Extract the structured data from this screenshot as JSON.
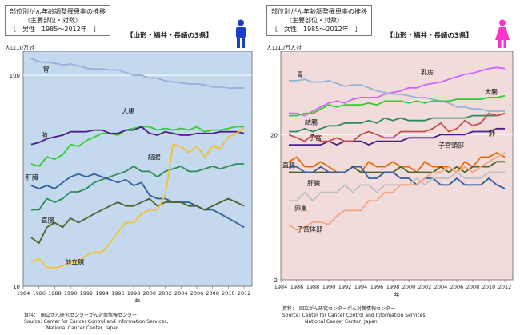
{
  "colors": {
    "male_bg": "#c5d9ee",
    "female_bg": "#f2dcdb",
    "male_icon": "#1a3ec8",
    "female_icon": "#ff33cc",
    "stomach_m": "#98b0dc",
    "colon": "#33cc33",
    "lung": "#4b1f8a",
    "liver": "#2f5f9e",
    "pancreas": "#2e8b57",
    "rectum": "#4f6228",
    "prostate": "#f2c12e",
    "breast": "#cc66ff",
    "stomach_f": "#95b3d7",
    "uterus": "#c0504d",
    "cervix": "#e46c0a",
    "ovary": "#bfbfbf",
    "corpus": "#f4a582"
  },
  "left": {
    "title_line1": "部位別がん年齢調整罹患率の推移",
    "title_line2": "（主要部位・対数）",
    "title_line3": "［　男性　1985～2012年　］",
    "region": "【山形・福井・長崎の3県】",
    "unit": "人口10万対",
    "xlabel": "年",
    "source_line1": "資料：　国立がん研究センターがん対策情報センター",
    "source_line2": "Source: Center for Cancer Control and Information Services,",
    "source_line3": "National Cancer Center, Japan"
  },
  "right": {
    "title_line1": "部位別がん年齢調整罹患率の推移",
    "title_line2": "（主要部位・対数）",
    "title_line3": "［　女性　1985～2012年　］",
    "region": "【山形・福井・長崎の3県】",
    "unit": "人口10万人対",
    "xlabel": "年",
    "source_line1": "資料：　国立がん研究センターがん対策情報センター",
    "source_line2": "Source: Center for Cancer Control and Information Services,",
    "source_line3": "National Cancer Center, Japan"
  },
  "chart_data": [
    {
      "type": "line",
      "title": "部位別がん年齢調整罹患率の推移（主要部位・対数）［男性 1985～2012年］",
      "xlabel": "年",
      "ylabel": "人口10万対",
      "yscale": "log",
      "ylim": [
        10,
        130
      ],
      "xlim": [
        1984,
        2013
      ],
      "yticks": [
        10,
        100
      ],
      "xticks": [
        1984,
        1986,
        1988,
        1990,
        1992,
        1994,
        1996,
        1998,
        2000,
        2002,
        2004,
        2006,
        2008,
        2010,
        2012
      ],
      "grid": "horizontal at 100",
      "x": [
        1985,
        1986,
        1987,
        1988,
        1989,
        1990,
        1991,
        1992,
        1993,
        1994,
        1995,
        1996,
        1997,
        1998,
        1999,
        2000,
        2001,
        2002,
        2003,
        2004,
        2005,
        2006,
        2007,
        2008,
        2009,
        2010,
        2011,
        2012
      ],
      "series": [
        {
          "name": "胃",
          "color_key": "stomach_m",
          "label_x": 1986.5,
          "label_y": 104,
          "values": [
            120,
            116,
            115,
            114,
            112,
            113,
            111,
            108,
            107,
            107,
            106,
            106,
            103,
            100,
            100,
            97,
            97,
            94,
            93,
            92,
            91,
            91,
            90,
            88,
            88,
            87,
            87,
            87
          ]
        },
        {
          "name": "大腸",
          "color_key": "colon",
          "label_x": 1996.5,
          "label_y": 66,
          "values": [
            38,
            37,
            41,
            40,
            42,
            47,
            46,
            49,
            51,
            53,
            53,
            52,
            55,
            56,
            57,
            57,
            55,
            56,
            55,
            56,
            55,
            57,
            54,
            55,
            55,
            56,
            57,
            57
          ]
        },
        {
          "name": "肺",
          "color_key": "lung",
          "label_x": 1986.3,
          "label_y": 51,
          "values": [
            47,
            48,
            50,
            51,
            52,
            54,
            54,
            54,
            55,
            55,
            53,
            53,
            55,
            55,
            57,
            53,
            52,
            54,
            53,
            52,
            52,
            53,
            53,
            53,
            54,
            54,
            54,
            53
          ]
        },
        {
          "name": "結腸",
          "color_key": "pancreas",
          "label_x": 1999.8,
          "label_y": 40,
          "values": [
            23,
            23,
            26,
            25,
            26,
            28,
            28,
            29,
            31,
            32,
            33,
            34,
            35,
            37,
            35,
            35,
            33,
            35,
            36,
            37,
            35,
            35,
            36,
            37,
            36,
            37,
            38,
            38
          ]
        },
        {
          "name": "肝臓",
          "color_key": "liver",
          "label_x": 1984.3,
          "label_y": 32,
          "values": [
            30,
            29,
            30,
            29,
            31,
            33,
            34,
            33,
            34,
            33,
            32,
            31,
            32,
            30,
            31,
            27,
            26,
            26,
            25,
            25,
            25,
            24,
            23,
            23,
            22,
            21,
            20,
            19
          ]
        },
        {
          "name": "直腸",
          "color_key": "rectum",
          "label_x": 1986.3,
          "label_y": 20,
          "values": [
            17,
            16,
            19,
            20,
            19,
            21,
            20,
            21,
            22,
            23,
            24,
            25,
            24,
            24,
            25,
            26,
            24,
            25,
            25,
            25,
            24,
            24,
            23,
            24,
            25,
            26,
            25,
            24
          ]
        },
        {
          "name": "前立腺",
          "color_key": "prostate",
          "label_x": 1989.3,
          "label_y": 12.7,
          "values": [
            13,
            13.5,
            12.3,
            12.2,
            12.5,
            13,
            13,
            14,
            14.5,
            14.5,
            16,
            18,
            20,
            20,
            22,
            23,
            23,
            27,
            47,
            46,
            43,
            46,
            41,
            46,
            45,
            51,
            53,
            56
          ]
        }
      ]
    },
    {
      "type": "line",
      "title": "部位別がん年齢調整罹患率の推移（主要部位・対数）［女性 1985～2012年］",
      "xlabel": "年",
      "ylabel": "人口10万人対",
      "yscale": "log",
      "ylim": [
        2,
        75
      ],
      "xlim": [
        1984,
        2013
      ],
      "yticks": [
        2,
        20
      ],
      "xticks": [
        1984,
        1986,
        1988,
        1990,
        1992,
        1994,
        1996,
        1998,
        2000,
        2002,
        2004,
        2006,
        2008,
        2010,
        2012
      ],
      "grid": "horizontal at 20",
      "x": [
        1985,
        1986,
        1987,
        1988,
        1989,
        1990,
        1991,
        1992,
        1993,
        1994,
        1995,
        1996,
        1997,
        1998,
        1999,
        2000,
        2001,
        2002,
        2003,
        2004,
        2005,
        2006,
        2007,
        2008,
        2009,
        2010,
        2011,
        2012
      ],
      "series": [
        {
          "name": "乳房",
          "color_key": "breast",
          "label_x": 2001.5,
          "label_y": 52,
          "values": [
            28,
            28,
            27,
            29,
            31,
            33,
            34,
            33,
            35,
            36,
            36,
            36,
            38,
            39,
            40,
            42,
            42,
            44,
            45,
            46,
            48,
            50,
            52,
            53,
            55,
            57,
            58,
            57
          ]
        },
        {
          "name": "胃",
          "color_key": "stomach_f",
          "label_x": 1986,
          "label_y": 50,
          "values": [
            47,
            47,
            48,
            46,
            46,
            47,
            45,
            43,
            44,
            44,
            42,
            40,
            39,
            38,
            38,
            37,
            36,
            36,
            35,
            34,
            33,
            31,
            31,
            30,
            30,
            29,
            29,
            29
          ]
        },
        {
          "name": "大腸",
          "color_key": "colon",
          "label_x": 2009.5,
          "label_y": 38,
          "values": [
            27,
            27,
            28,
            28,
            30,
            32,
            31,
            32,
            32,
            32,
            33,
            32,
            34,
            34,
            34,
            33,
            34,
            33,
            34,
            34,
            34,
            35,
            35,
            35,
            35,
            36,
            36,
            37
          ]
        },
        {
          "name": "結腸",
          "color_key": "pancreas",
          "label_x": 1987,
          "label_y": 23.5,
          "values": [
            21,
            21,
            22,
            21,
            22,
            23,
            23,
            24,
            24,
            24,
            25,
            24,
            26,
            25,
            26,
            25,
            25,
            25,
            26,
            26,
            26,
            26,
            26,
            27,
            27,
            27,
            27,
            28
          ]
        },
        {
          "name": "肺",
          "color_key": "lung",
          "label_x": 2010,
          "label_y": 19.7,
          "values": [
            17,
            17,
            17,
            17,
            17,
            18,
            17,
            18,
            18,
            18,
            17,
            18,
            18,
            18,
            18,
            19,
            19,
            19,
            19,
            20,
            20,
            20,
            20,
            21,
            21,
            21,
            22,
            22
          ]
        },
        {
          "name": "子宮",
          "color_key": "uterus",
          "label_x": 1987.5,
          "label_y": 18.4,
          "values": [
            20,
            19,
            18,
            20,
            18,
            18,
            19,
            18,
            18,
            20,
            21,
            20,
            19,
            19,
            21,
            21,
            21,
            21,
            22,
            24,
            21,
            22,
            25,
            23,
            24,
            28,
            27,
            28
          ]
        },
        {
          "name": "子宮頸部",
          "color_key": "cervix",
          "label_x": 2003.7,
          "label_y": 16.3,
          "values": [
            13,
            14,
            12,
            12,
            13,
            12,
            11,
            11,
            12,
            11,
            13,
            12,
            12,
            13,
            12,
            12,
            11,
            13,
            12,
            12,
            12,
            11,
            13,
            12,
            14,
            14,
            15,
            14
          ]
        },
        {
          "name": "直腸",
          "color_key": "rectum",
          "label_x": 1984.2,
          "label_y": 11.9,
          "values": [
            11,
            11,
            11,
            11,
            11,
            11,
            11,
            11,
            12,
            11,
            11,
            11,
            11,
            11,
            12,
            11,
            11,
            11,
            11,
            12,
            11,
            12,
            11,
            12,
            12,
            12,
            13,
            13
          ]
        },
        {
          "name": "肝臓",
          "color_key": "liver",
          "label_x": 1987.3,
          "label_y": 8.9,
          "values": [
            12,
            12,
            11,
            11,
            12,
            11,
            11,
            11,
            12,
            12,
            10,
            10,
            11,
            11,
            10,
            10,
            9,
            10,
            10,
            9,
            9,
            10,
            9,
            9,
            9,
            10,
            9,
            8.5
          ]
        },
        {
          "name": "卵巣",
          "color_key": "ovary",
          "label_x": 1985.7,
          "label_y": 6,
          "values": [
            7,
            7,
            8,
            7,
            8,
            8,
            8,
            9,
            8,
            9,
            9,
            8,
            9,
            9,
            9,
            9,
            10,
            9,
            10,
            10,
            10,
            11,
            10,
            10,
            10,
            11,
            11,
            11
          ]
        },
        {
          "name": "子宮体部",
          "color_key": "corpus",
          "label_x": 1986,
          "label_y": 4.3,
          "values": [
            4.8,
            4.4,
            4.6,
            5,
            5,
            4.8,
            5.5,
            6,
            6,
            6,
            7,
            7,
            8,
            8,
            9,
            9,
            9,
            10,
            11,
            11,
            12,
            11,
            12,
            11,
            12,
            13,
            14,
            15
          ]
        }
      ]
    }
  ]
}
